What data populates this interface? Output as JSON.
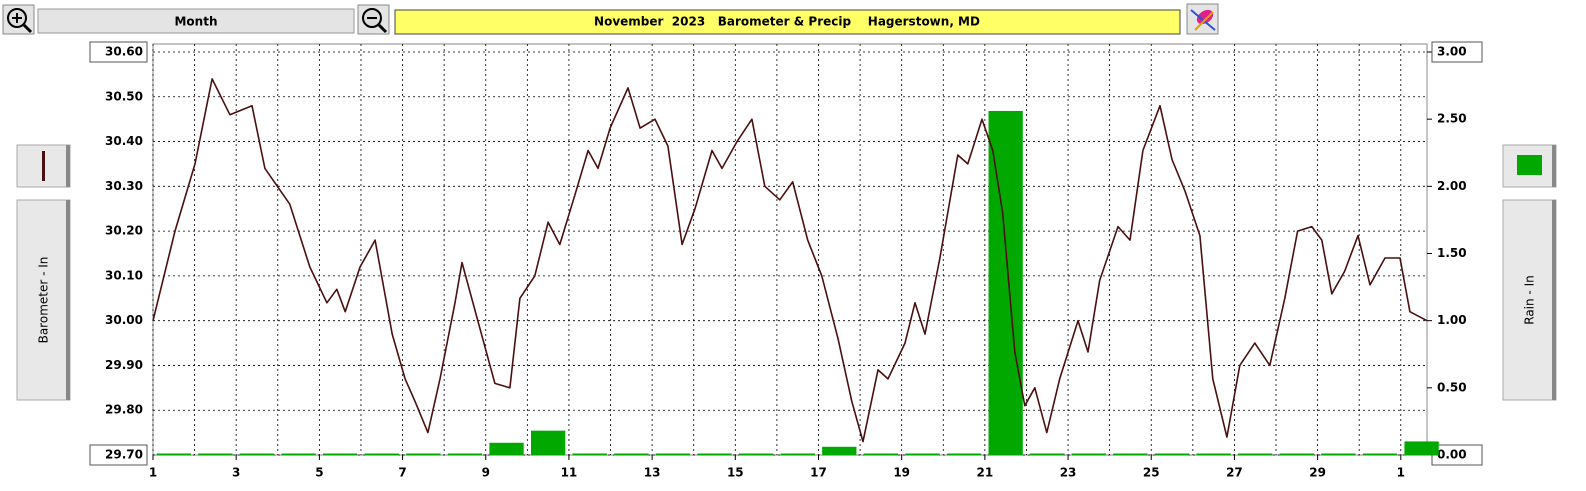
{
  "toolbar": {
    "view": "Month"
  },
  "chart_data": {
    "type": "combo",
    "title": "November  2023   Barometer & Precip    Hagerstown, MD",
    "ylabel": "Barometer - In",
    "y2label": "Rain - In",
    "xlim": [
      1,
      31.63
    ],
    "xticks": [
      1,
      3,
      5,
      7,
      9,
      11,
      13,
      15,
      17,
      19,
      21,
      23,
      25,
      27,
      29,
      {
        "value": 31,
        "label": "1"
      }
    ],
    "x_minor_ticks": [
      2,
      4,
      6,
      8,
      10,
      12,
      14,
      16,
      18,
      20,
      22,
      24,
      26,
      28,
      30
    ],
    "ylim": [
      29.7,
      30.6
    ],
    "yticks": [
      {
        "value": 29.7,
        "label": "29.70"
      },
      {
        "value": 29.8,
        "label": "29.80"
      },
      {
        "value": 29.9,
        "label": "29.90"
      },
      {
        "value": 30.0,
        "label": "30.00"
      },
      {
        "value": 30.1,
        "label": "30.10"
      },
      {
        "value": 30.2,
        "label": "30.20"
      },
      {
        "value": 30.3,
        "label": "30.30"
      },
      {
        "value": 30.4,
        "label": "30.40"
      },
      {
        "value": 30.5,
        "label": "30.50"
      },
      {
        "value": 30.6,
        "label": "30.60"
      }
    ],
    "y2lim": [
      0,
      3
    ],
    "y2ticks": [
      {
        "value": 0,
        "label": "0.00"
      },
      {
        "value": 0.5,
        "label": "0.50"
      },
      {
        "value": 1,
        "label": "1.00"
      },
      {
        "value": 1.5,
        "label": "1.50"
      },
      {
        "value": 2,
        "label": "2.00"
      },
      {
        "value": 2.5,
        "label": "2.50"
      },
      {
        "value": 3,
        "label": "3.00"
      }
    ],
    "grid": true,
    "series": [
      {
        "type": "bar",
        "axis": "y2",
        "color": "#00a800",
        "x": [
          1,
          2,
          3,
          4,
          5,
          6,
          7,
          8,
          9,
          10,
          11,
          12,
          13,
          14,
          15,
          16,
          17,
          18,
          19,
          20,
          21,
          22,
          23,
          24,
          25,
          26,
          27,
          28,
          29,
          30,
          31
        ],
        "values": [
          0,
          0,
          0,
          0,
          0,
          0,
          0,
          0,
          0.08,
          0.17,
          0,
          0,
          0,
          0,
          0,
          0,
          0.05,
          0,
          0,
          0,
          2.55,
          0,
          0,
          0,
          0,
          0,
          0,
          0,
          0,
          0,
          0.09
        ]
      },
      {
        "type": "line",
        "color": "#4a1010",
        "x": [
          1.0,
          1.53,
          2.01,
          2.42,
          2.85,
          3.38,
          3.69,
          4.29,
          4.77,
          5.18,
          5.42,
          5.62,
          5.98,
          6.34,
          6.75,
          7.06,
          7.3,
          7.61,
          7.9,
          8.26,
          8.43,
          8.81,
          9.22,
          9.58,
          9.82,
          10.18,
          10.5,
          10.78,
          11.14,
          11.46,
          11.7,
          11.99,
          12.42,
          12.71,
          13.07,
          13.38,
          13.72,
          14.03,
          14.44,
          14.68,
          15.04,
          15.4,
          15.71,
          16.07,
          16.38,
          16.74,
          17.08,
          17.47,
          17.8,
          18.07,
          18.43,
          18.67,
          19.08,
          19.32,
          19.56,
          19.92,
          20.35,
          20.59,
          20.93,
          21.19,
          21.43,
          21.72,
          21.96,
          22.2,
          22.49,
          22.8,
          23.24,
          23.48,
          23.76,
          24.2,
          24.49,
          24.8,
          25.21,
          25.5,
          25.81,
          26.17,
          26.48,
          26.82,
          27.13,
          27.49,
          27.85,
          28.21,
          28.52,
          28.86,
          29.1,
          29.34,
          29.65,
          29.97,
          30.26,
          30.62,
          30.98,
          31.22,
          31.63
        ],
        "values": [
          30.0,
          30.2,
          30.35,
          30.54,
          30.46,
          30.48,
          30.34,
          30.26,
          30.12,
          30.04,
          30.07,
          30.02,
          30.12,
          30.18,
          29.97,
          29.87,
          29.82,
          29.75,
          29.87,
          30.04,
          30.13,
          30.0,
          29.86,
          29.85,
          30.05,
          30.1,
          30.22,
          30.17,
          30.28,
          30.38,
          30.34,
          30.43,
          30.52,
          30.43,
          30.45,
          30.39,
          30.17,
          30.25,
          30.38,
          30.34,
          30.4,
          30.45,
          30.3,
          30.27,
          30.31,
          30.18,
          30.1,
          29.96,
          29.82,
          29.73,
          29.89,
          29.87,
          29.95,
          30.04,
          29.97,
          30.14,
          30.37,
          30.35,
          30.45,
          30.38,
          30.24,
          29.93,
          29.81,
          29.85,
          29.75,
          29.87,
          30.0,
          29.93,
          30.09,
          30.21,
          30.18,
          30.38,
          30.48,
          30.36,
          30.29,
          30.19,
          29.87,
          29.74,
          29.9,
          29.95,
          29.9,
          30.05,
          30.2,
          30.21,
          30.18,
          30.06,
          30.11,
          30.19,
          30.08,
          30.14,
          30.14,
          30.02,
          30.0
        ]
      }
    ]
  }
}
